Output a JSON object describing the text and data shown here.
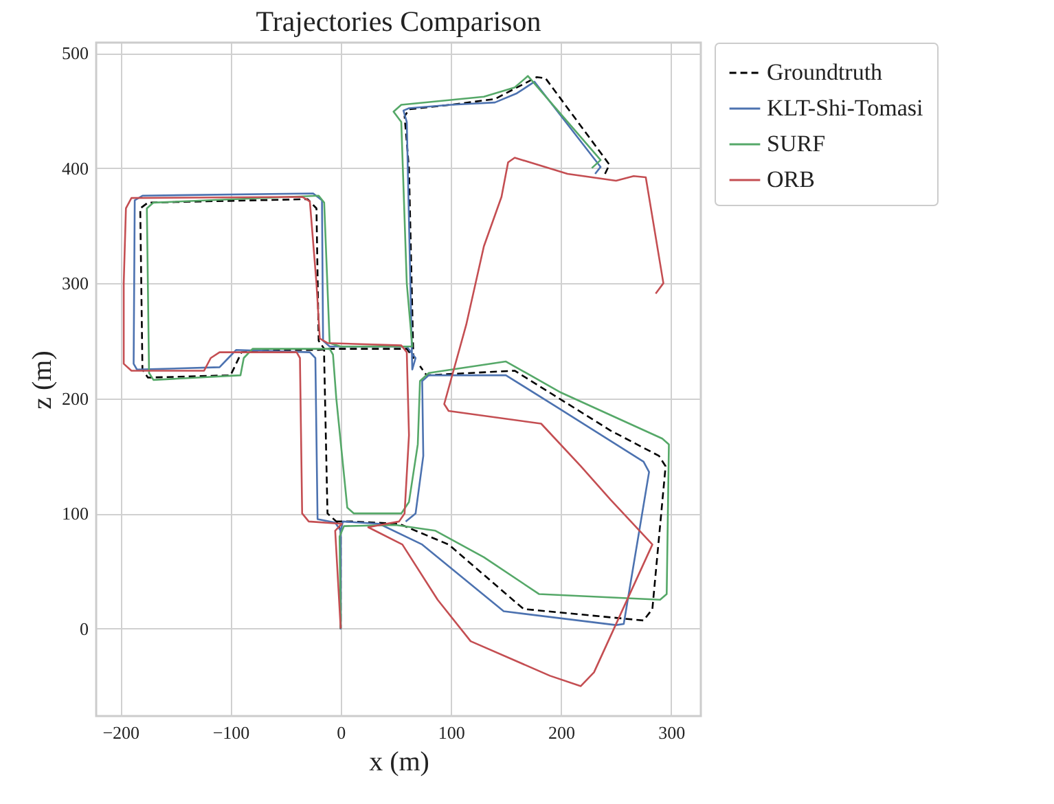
{
  "chart_data": {
    "type": "line",
    "title": "Trajectories Comparison",
    "xlabel": "x (m)",
    "ylabel": "z (m)",
    "xlim": [
      -222,
      327
    ],
    "ylim": [
      -76,
      509
    ],
    "xticks": [
      {
        "value": -200,
        "label": "−200"
      },
      {
        "value": -100,
        "label": "−100"
      },
      0,
      100,
      200,
      300
    ],
    "yticks": [
      0,
      100,
      200,
      300,
      400,
      500
    ],
    "grid": true,
    "legend": "right",
    "series": [
      {
        "name": "Groundtruth",
        "color": "#000000",
        "line_style": "dashed",
        "x": [
          240,
          244,
          186,
          178,
          140,
          100,
          62,
          58,
          62,
          66,
          60,
          -10,
          -20,
          -60,
          -90,
          -95,
          -100,
          -175,
          -180,
          -182,
          -175,
          -30,
          -22,
          -20,
          -15,
          -15,
          -12,
          -4,
          0,
          0,
          0,
          -4,
          10,
          53,
          98,
          166,
          275,
          283,
          295,
          289,
          245,
          158,
          78,
          72
        ],
        "values": [
          395,
          403,
          478,
          479,
          460,
          455,
          451,
          445,
          400,
          235,
          243,
          243,
          242,
          242,
          240,
          230,
          220,
          218,
          225,
          365,
          370,
          373,
          365,
          250,
          243,
          235,
          100,
          93,
          85,
          0,
          85,
          93,
          93,
          91,
          73,
          17,
          7,
          17,
          141,
          150,
          172,
          224,
          220,
          228
        ]
      },
      {
        "name": "KLT-Shi-Tomasi",
        "color": "#4c72b0",
        "line_style": "solid",
        "x": [
          231,
          236,
          176,
          160,
          140,
          100,
          62,
          57,
          60,
          65,
          68,
          60,
          -10,
          -16,
          -17,
          -25,
          -180,
          -187,
          -188,
          -185,
          -110,
          -102,
          -95,
          -28,
          -23,
          -21,
          -5,
          0,
          0,
          0,
          2,
          35,
          74,
          148,
          250,
          257,
          280,
          275,
          197,
          150,
          80,
          74,
          75,
          68,
          59
        ],
        "values": [
          395,
          401,
          475,
          465,
          457,
          455,
          452,
          450,
          440,
          225,
          235,
          245,
          245,
          250,
          372,
          378,
          376,
          372,
          230,
          225,
          227,
          235,
          242,
          240,
          235,
          95,
          92,
          85,
          0,
          85,
          93,
          91,
          73,
          15,
          3,
          4,
          136,
          145,
          192,
          220,
          220,
          215,
          150,
          100,
          93
        ]
      },
      {
        "name": "SURF",
        "color": "#55a868",
        "line_style": "solid",
        "x": [
          0,
          -1,
          3,
          50,
          86,
          130,
          180,
          290,
          296,
          298,
          292,
          200,
          150,
          80,
          72,
          70,
          62,
          55,
          12,
          6,
          -4,
          -7,
          -10,
          -80,
          -88,
          -91,
          -170,
          -174,
          -176,
          -170,
          -20,
          -15,
          -10,
          0,
          65,
          60,
          55,
          48,
          55,
          130,
          158,
          170,
          236,
          228
        ],
        "values": [
          0,
          80,
          89,
          90,
          85,
          62,
          30,
          25,
          30,
          160,
          165,
          205,
          232,
          222,
          215,
          160,
          110,
          100,
          100,
          105,
          200,
          238,
          243,
          243,
          235,
          220,
          216,
          222,
          365,
          370,
          376,
          370,
          248,
          245,
          245,
          300,
          440,
          449,
          455,
          462,
          470,
          480,
          407,
          400
        ]
      },
      {
        "name": "ORB",
        "color": "#c44e52",
        "line_style": "solid",
        "x": [
          0,
          -5,
          1,
          -29,
          -35,
          -37,
          -40,
          -110,
          -118,
          -124,
          -190,
          -197,
          -197,
          -195,
          -190,
          -35,
          -28,
          -22,
          -19,
          -12,
          55,
          60,
          62,
          58,
          53,
          25,
          56,
          88,
          118,
          190,
          218,
          230,
          283,
          245,
          218,
          182,
          98,
          94,
          114,
          130,
          146,
          152,
          158,
          206,
          250,
          266,
          277,
          293,
          286
        ],
        "values": [
          0,
          85,
          91,
          93,
          100,
          235,
          240,
          240,
          235,
          224,
          224,
          230,
          300,
          365,
          374,
          375,
          371,
          300,
          252,
          248,
          246,
          240,
          168,
          100,
          93,
          88,
          73,
          25,
          -11,
          -41,
          -50,
          -38,
          73,
          112,
          141,
          178,
          189,
          195,
          264,
          332,
          375,
          405,
          409,
          395,
          389,
          393,
          392,
          300,
          291
        ]
      }
    ]
  }
}
